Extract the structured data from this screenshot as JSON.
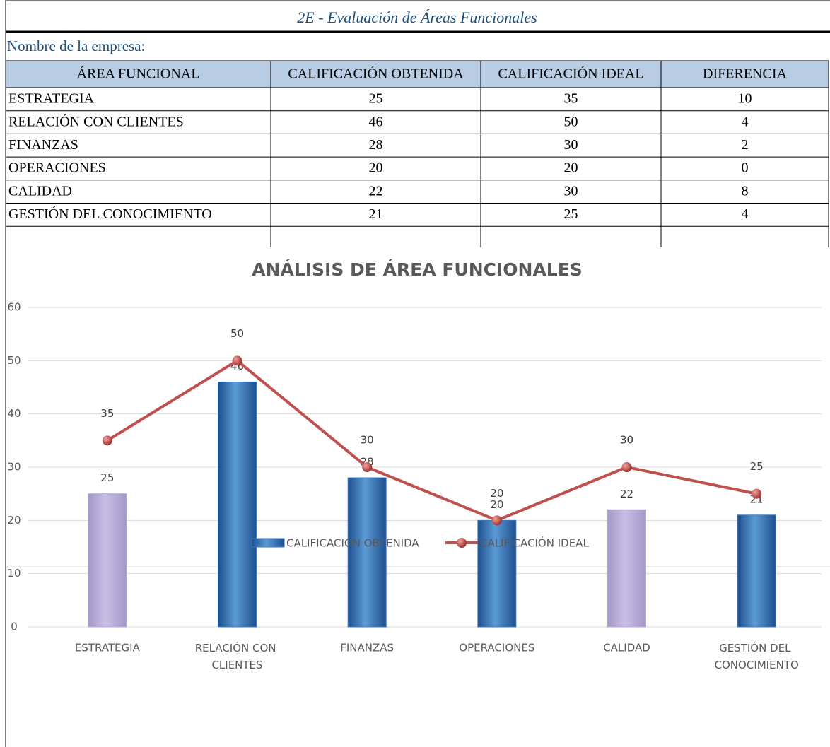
{
  "header": {
    "title": "2E - Evaluación de Áreas Funcionales",
    "company_label": "Nombre de la empresa:"
  },
  "table": {
    "columns": [
      "ÁREA FUNCIONAL",
      "CALIFICACIÓN OBTENIDA",
      "CALIFICACIÓN IDEAL",
      "DIFERENCIA"
    ],
    "rows": [
      [
        "ESTRATEGIA",
        25,
        35,
        10
      ],
      [
        "RELACIÓN CON CLIENTES",
        46,
        50,
        4
      ],
      [
        "FINANZAS",
        28,
        30,
        2
      ],
      [
        "OPERACIONES",
        20,
        20,
        0
      ],
      [
        "CALIDAD",
        22,
        30,
        8
      ],
      [
        "GESTIÓN DEL CONOCIMIENTO",
        21,
        25,
        4
      ]
    ]
  },
  "chart_data": {
    "type": "bar",
    "title": "ANÁLISIS DE ÁREA FUNCIONALES",
    "categories": [
      "ESTRATEGIA",
      "RELACIÓN CON CLIENTES",
      "FINANZAS",
      "OPERACIONES",
      "CALIDAD",
      "GESTIÓN DEL CONOCIMIENTO"
    ],
    "series": [
      {
        "name": "CALIFICACIÓN OBTENIDA",
        "type": "bar",
        "color": "#3a78c2",
        "colors": [
          "#b4a7d6",
          "#3a78c2",
          "#3a78c2",
          "#3a78c2",
          "#b4a7d6",
          "#3a78c2"
        ],
        "values": [
          25,
          46,
          28,
          20,
          22,
          21
        ]
      },
      {
        "name": "CALIFICACIÓN IDEAL",
        "type": "line",
        "color": "#c0504d",
        "values": [
          35,
          50,
          30,
          20,
          30,
          25
        ]
      }
    ],
    "ylim": [
      0,
      60
    ],
    "yticks": [
      0,
      10,
      20,
      30,
      40,
      50,
      60
    ],
    "grid": true,
    "legend": "bottom"
  }
}
